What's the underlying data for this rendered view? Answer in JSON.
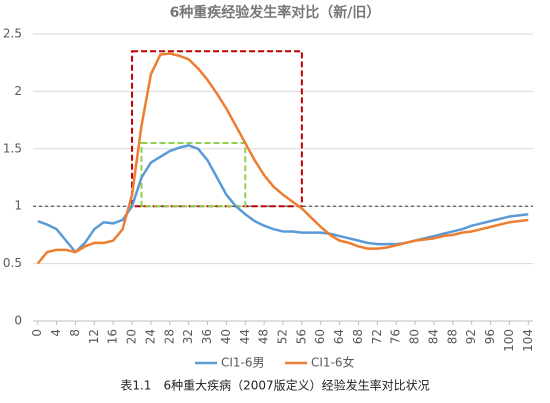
{
  "chart_data": {
    "type": "line",
    "title": "6种重疾经验发生率对比（新/旧）",
    "caption": "表1.1　6种重大疾病（2007版定义）经验发生率对比状况",
    "x": [
      0,
      2,
      4,
      6,
      8,
      10,
      12,
      14,
      16,
      18,
      20,
      22,
      24,
      26,
      28,
      30,
      32,
      34,
      36,
      38,
      40,
      42,
      44,
      46,
      48,
      50,
      52,
      54,
      56,
      58,
      60,
      62,
      64,
      66,
      68,
      70,
      72,
      74,
      76,
      78,
      80,
      82,
      84,
      86,
      88,
      90,
      92,
      94,
      96,
      98,
      100,
      102,
      104
    ],
    "series": [
      {
        "name": "CI1-6男",
        "color": "#5b9bd5",
        "values": [
          0.87,
          0.84,
          0.8,
          0.7,
          0.6,
          0.68,
          0.8,
          0.86,
          0.85,
          0.88,
          1.0,
          1.25,
          1.38,
          1.43,
          1.48,
          1.51,
          1.53,
          1.5,
          1.4,
          1.25,
          1.1,
          1.0,
          0.93,
          0.87,
          0.83,
          0.8,
          0.78,
          0.78,
          0.77,
          0.77,
          0.77,
          0.76,
          0.74,
          0.72,
          0.7,
          0.68,
          0.67,
          0.67,
          0.67,
          0.68,
          0.7,
          0.72,
          0.74,
          0.76,
          0.78,
          0.8,
          0.83,
          0.85,
          0.87,
          0.89,
          0.91,
          0.92,
          0.93
        ]
      },
      {
        "name": "CI1-6女",
        "color": "#ed7d31",
        "values": [
          0.5,
          0.6,
          0.62,
          0.62,
          0.6,
          0.65,
          0.68,
          0.68,
          0.7,
          0.8,
          1.1,
          1.7,
          2.15,
          2.32,
          2.33,
          2.31,
          2.28,
          2.2,
          2.1,
          1.98,
          1.85,
          1.7,
          1.55,
          1.4,
          1.27,
          1.17,
          1.1,
          1.04,
          0.98,
          0.9,
          0.82,
          0.75,
          0.7,
          0.68,
          0.65,
          0.63,
          0.63,
          0.64,
          0.66,
          0.68,
          0.7,
          0.71,
          0.72,
          0.74,
          0.75,
          0.77,
          0.78,
          0.8,
          0.82,
          0.84,
          0.86,
          0.87,
          0.88
        ]
      }
    ],
    "xlim": [
      -1,
      105
    ],
    "xticks": [
      0,
      4,
      8,
      12,
      16,
      20,
      24,
      28,
      32,
      36,
      40,
      44,
      48,
      52,
      56,
      60,
      64,
      68,
      72,
      76,
      80,
      84,
      88,
      92,
      96,
      100,
      104
    ],
    "ylim": [
      0,
      2.5
    ],
    "yticks": [
      0,
      0.5,
      1,
      1.5,
      2,
      2.5
    ],
    "grid": true,
    "legend": "bottom",
    "reference_line": {
      "value": 1,
      "color": "#333333"
    },
    "highlight_boxes": [
      {
        "x": [
          20,
          56
        ],
        "y": [
          1,
          2.35
        ],
        "color": "#c00000"
      },
      {
        "x": [
          22,
          44
        ],
        "y": [
          1,
          1.55
        ],
        "color": "#92d050"
      }
    ]
  }
}
